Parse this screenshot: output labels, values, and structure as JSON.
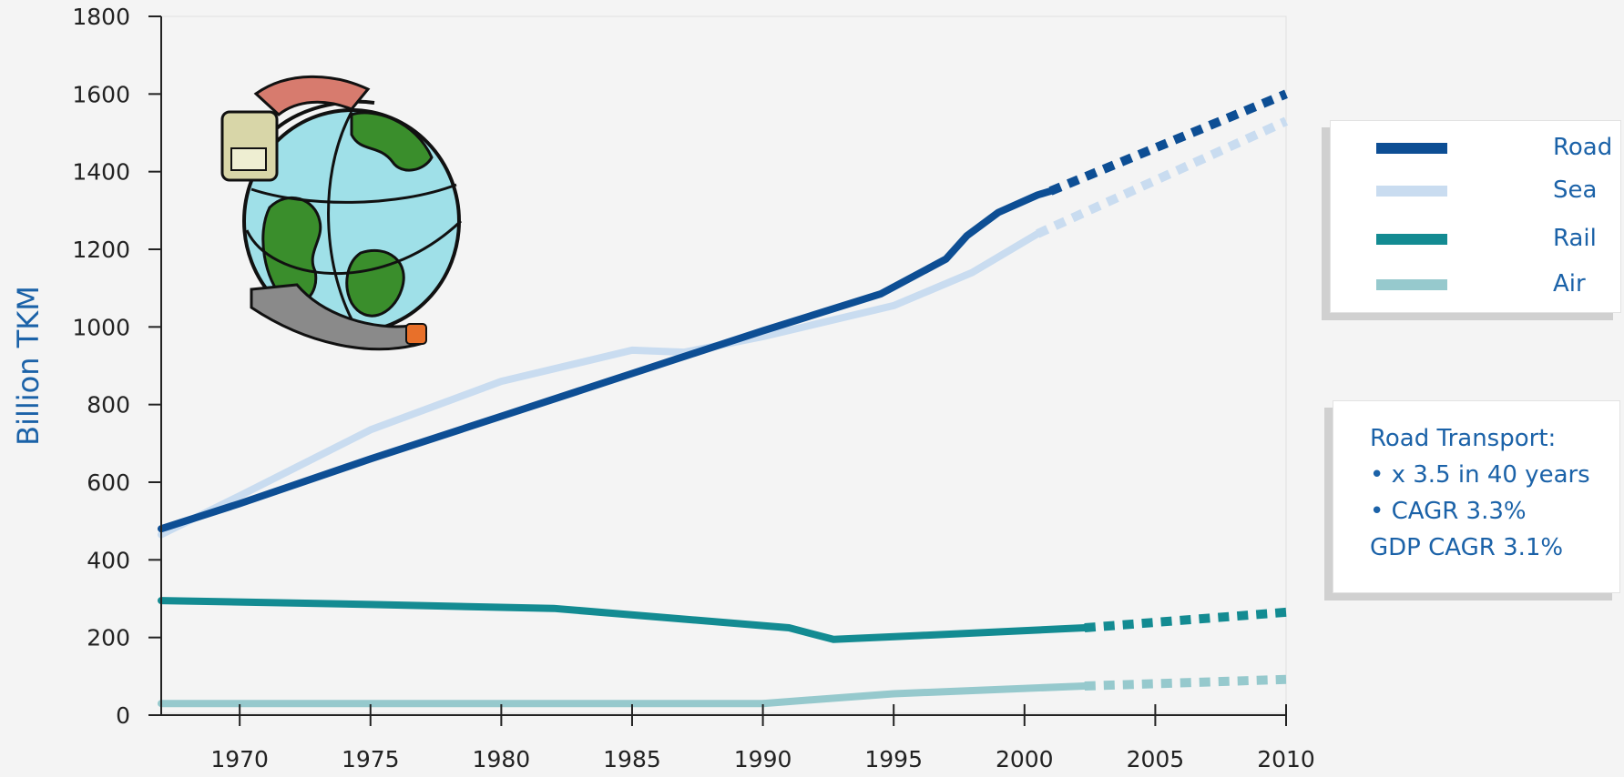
{
  "chart_data": {
    "type": "line",
    "title": "",
    "ylabel": "Billion TKM",
    "xlabel": "",
    "xlim": [
      1967,
      2010
    ],
    "ylim": [
      0,
      1800
    ],
    "x_ticks": [
      "1970",
      "1975",
      "1980",
      "1985",
      "1990",
      "1995",
      "2000",
      "2005",
      "2010"
    ],
    "y_ticks": [
      "0",
      "200",
      "400",
      "600",
      "800",
      "1000",
      "1200",
      "1400",
      "1600",
      "1800"
    ],
    "grid": false,
    "legend_position": "right",
    "series": [
      {
        "name": "Road",
        "color": "#0d4e94",
        "style": "solid",
        "x": [
          1967,
          1970,
          1975,
          1980,
          1985,
          1990,
          1994.5,
          1997,
          1997.8,
          1999,
          2000.5,
          2001
        ],
        "y": [
          480,
          545,
          660,
          770,
          880,
          990,
          1085,
          1175,
          1235,
          1295,
          1340,
          1350
        ]
      },
      {
        "name": "Road projection",
        "color": "#0d4e94",
        "style": "dotted",
        "x": [
          2001,
          2010
        ],
        "y": [
          1350,
          1600
        ]
      },
      {
        "name": "Sea",
        "color": "#c9dcf0",
        "style": "solid",
        "x": [
          1967,
          1970,
          1975,
          1980,
          1985,
          1987,
          1990,
          1995,
          1998,
          2000.5
        ],
        "y": [
          465,
          565,
          735,
          860,
          940,
          935,
          975,
          1055,
          1140,
          1240
        ]
      },
      {
        "name": "Sea projection",
        "color": "#c9dcf0",
        "style": "dotted",
        "x": [
          2000.5,
          2010
        ],
        "y": [
          1240,
          1530
        ]
      },
      {
        "name": "Rail",
        "color": "#138b92",
        "style": "solid",
        "x": [
          1967,
          1975,
          1982,
          1991,
          1992.7,
          1996,
          2002.3
        ],
        "y": [
          295,
          285,
          275,
          225,
          195,
          205,
          225
        ]
      },
      {
        "name": "Rail projection",
        "color": "#138b92",
        "style": "dotted",
        "x": [
          2002.3,
          2010
        ],
        "y": [
          225,
          265
        ]
      },
      {
        "name": "Air",
        "color": "#96c9cd",
        "style": "solid",
        "x": [
          1967,
          1990,
          1995,
          2002.3
        ],
        "y": [
          30,
          30,
          55,
          75
        ]
      },
      {
        "name": "Air projection",
        "color": "#96c9cd",
        "style": "dotted",
        "x": [
          2002.3,
          2010
        ],
        "y": [
          75,
          92
        ]
      }
    ],
    "legend": [
      {
        "label": "Road",
        "color": "#0d4e94"
      },
      {
        "label": "Sea",
        "color": "#c9dcf0"
      },
      {
        "label": "Rail",
        "color": "#138b92"
      },
      {
        "label": "Air",
        "color": "#96c9cd"
      }
    ]
  },
  "note": {
    "lines": [
      "Road Transport:",
      "• x 3.5 in 40 years",
      "• CAGR 3.3%",
      "GDP CAGR 3.1%"
    ]
  },
  "clipart": {
    "icon": "globe-transport-icon"
  }
}
